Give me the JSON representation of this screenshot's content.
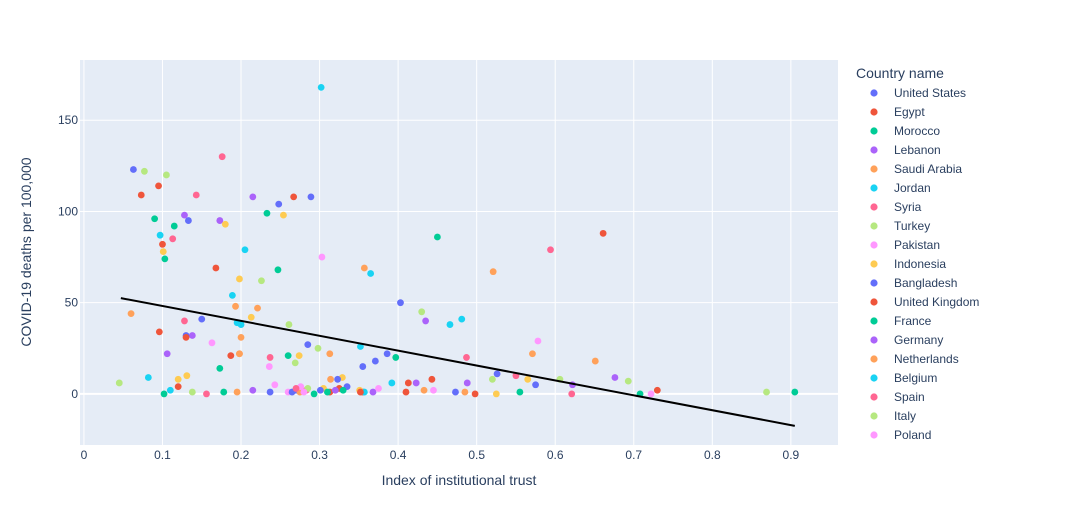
{
  "chart_data": {
    "type": "scatter",
    "xlabel": "Index of institutional trust",
    "ylabel": "COVID-19 deaths per 100,000",
    "xlim": [
      -0.005,
      0.96
    ],
    "ylim": [
      -28,
      183
    ],
    "xticks": [
      0,
      0.1,
      0.2,
      0.3,
      0.4,
      0.5,
      0.6,
      0.7,
      0.8,
      0.9
    ],
    "xtick_labels": [
      "0",
      "0.1",
      "0.2",
      "0.3",
      "0.4",
      "0.5",
      "0.6",
      "0.7",
      "0.8",
      "0.9"
    ],
    "yticks": [
      0,
      50,
      100,
      150
    ],
    "ytick_labels": [
      "0",
      "50",
      "100",
      "150"
    ],
    "grid": true,
    "plot_background": "#e5ecf6",
    "legend_title": "Country name",
    "legend_position": "right",
    "trendline": {
      "color": "#000000",
      "points": [
        [
          0.047,
          52.5
        ],
        [
          0.905,
          -17.5
        ]
      ]
    },
    "series": [
      {
        "name": "United States",
        "color": "#636efa",
        "points": [
          [
            0.063,
            123
          ],
          [
            0.133,
            95
          ],
          [
            0.15,
            41
          ],
          [
            0.248,
            104
          ],
          [
            0.289,
            108
          ],
          [
            0.285,
            27
          ],
          [
            0.237,
            1
          ],
          [
            0.27,
            2
          ],
          [
            0.386,
            22
          ],
          [
            0.403,
            50
          ],
          [
            0.526,
            11
          ],
          [
            0.575,
            5
          ],
          [
            0.473,
            1
          ]
        ]
      },
      {
        "name": "Egypt",
        "color": "#ef553b",
        "points": [
          [
            0.073,
            109
          ],
          [
            0.095,
            114
          ],
          [
            0.1,
            82
          ],
          [
            0.096,
            34
          ],
          [
            0.168,
            69
          ],
          [
            0.267,
            108
          ],
          [
            0.12,
            4
          ],
          [
            0.187,
            21
          ],
          [
            0.413,
            6
          ],
          [
            0.443,
            8
          ],
          [
            0.661,
            88
          ],
          [
            0.73,
            2
          ],
          [
            0.355,
            1
          ],
          [
            0.41,
            1
          ],
          [
            0.498,
            0
          ]
        ]
      },
      {
        "name": "Morocco",
        "color": "#00cc96",
        "points": [
          [
            0.09,
            96
          ],
          [
            0.103,
            74
          ],
          [
            0.115,
            92
          ],
          [
            0.233,
            99
          ],
          [
            0.247,
            68
          ],
          [
            0.26,
            21
          ],
          [
            0.173,
            14
          ],
          [
            0.45,
            86
          ],
          [
            0.397,
            20
          ],
          [
            0.102,
            0
          ],
          [
            0.178,
            1
          ],
          [
            0.293,
            0
          ],
          [
            0.555,
            1
          ],
          [
            0.708,
            0
          ],
          [
            0.905,
            1
          ]
        ]
      },
      {
        "name": "Lebanon",
        "color": "#ab63fa",
        "points": [
          [
            0.128,
            98
          ],
          [
            0.173,
            95
          ],
          [
            0.215,
            108
          ],
          [
            0.106,
            22
          ],
          [
            0.138,
            32
          ],
          [
            0.435,
            40
          ],
          [
            0.423,
            6
          ],
          [
            0.488,
            6
          ],
          [
            0.676,
            9
          ],
          [
            0.215,
            2
          ],
          [
            0.368,
            1
          ]
        ]
      },
      {
        "name": "Saudi Arabia",
        "color": "#ffa15a",
        "points": [
          [
            0.06,
            44
          ],
          [
            0.193,
            48
          ],
          [
            0.221,
            47
          ],
          [
            0.198,
            22
          ],
          [
            0.313,
            22
          ],
          [
            0.357,
            69
          ],
          [
            0.521,
            67
          ],
          [
            0.571,
            22
          ],
          [
            0.651,
            18
          ],
          [
            0.314,
            8
          ],
          [
            0.485,
            1
          ],
          [
            0.433,
            2
          ],
          [
            0.275,
            1
          ],
          [
            0.195,
            1
          ]
        ]
      },
      {
        "name": "Jordan",
        "color": "#19d3f3",
        "points": [
          [
            0.097,
            87
          ],
          [
            0.205,
            79
          ],
          [
            0.189,
            54
          ],
          [
            0.195,
            39
          ],
          [
            0.302,
            168
          ],
          [
            0.365,
            66
          ],
          [
            0.352,
            26
          ],
          [
            0.466,
            38
          ],
          [
            0.481,
            41
          ],
          [
            0.082,
            9
          ],
          [
            0.11,
            2
          ],
          [
            0.392,
            6
          ],
          [
            0.357,
            1
          ]
        ]
      },
      {
        "name": "Syria",
        "color": "#ff6692",
        "points": [
          [
            0.176,
            130
          ],
          [
            0.143,
            109
          ],
          [
            0.113,
            85
          ],
          [
            0.128,
            40
          ],
          [
            0.237,
            20
          ],
          [
            0.487,
            20
          ],
          [
            0.594,
            79
          ],
          [
            0.621,
            0
          ],
          [
            0.156,
            0
          ],
          [
            0.283,
            2
          ],
          [
            0.55,
            10
          ]
        ]
      },
      {
        "name": "Turkey",
        "color": "#b6e880",
        "points": [
          [
            0.077,
            122
          ],
          [
            0.105,
            120
          ],
          [
            0.226,
            62
          ],
          [
            0.261,
            38
          ],
          [
            0.269,
            17
          ],
          [
            0.43,
            45
          ],
          [
            0.045,
            6
          ],
          [
            0.138,
            1
          ],
          [
            0.298,
            25
          ],
          [
            0.52,
            8
          ],
          [
            0.606,
            8
          ],
          [
            0.693,
            7
          ],
          [
            0.869,
            1
          ]
        ]
      },
      {
        "name": "Pakistan",
        "color": "#ff97ff",
        "points": [
          [
            0.303,
            75
          ],
          [
            0.163,
            28
          ],
          [
            0.236,
            15
          ],
          [
            0.276,
            4
          ],
          [
            0.375,
            3
          ],
          [
            0.578,
            29
          ],
          [
            0.722,
            0
          ],
          [
            0.26,
            1
          ],
          [
            0.243,
            5
          ],
          [
            0.445,
            2
          ]
        ]
      },
      {
        "name": "Indonesia",
        "color": "#fecb52",
        "points": [
          [
            0.101,
            78
          ],
          [
            0.18,
            93
          ],
          [
            0.198,
            63
          ],
          [
            0.254,
            98
          ],
          [
            0.213,
            42
          ],
          [
            0.274,
            21
          ],
          [
            0.12,
            8
          ],
          [
            0.131,
            10
          ],
          [
            0.305,
            3
          ],
          [
            0.329,
            9
          ],
          [
            0.351,
            2
          ],
          [
            0.565,
            8
          ],
          [
            0.525,
            0
          ]
        ]
      },
      {
        "name": "Bangladesh",
        "color": "#636efa",
        "points": [
          [
            0.13,
            32
          ],
          [
            0.371,
            18
          ],
          [
            0.355,
            15
          ],
          [
            0.323,
            8
          ],
          [
            0.301,
            2
          ],
          [
            0.265,
            1
          ],
          [
            0.335,
            4
          ]
        ]
      },
      {
        "name": "United Kingdom",
        "color": "#ef553b",
        "points": [
          [
            0.13,
            31
          ],
          [
            0.313,
            1
          ],
          [
            0.325,
            3
          ],
          [
            0.352,
            1
          ]
        ]
      },
      {
        "name": "France",
        "color": "#00cc96",
        "points": [
          [
            0.31,
            1
          ],
          [
            0.33,
            2
          ]
        ]
      },
      {
        "name": "Germany",
        "color": "#ab63fa",
        "points": [
          [
            0.622,
            5
          ],
          [
            0.32,
            2
          ]
        ]
      },
      {
        "name": "Netherlands",
        "color": "#ffa15a",
        "points": [
          [
            0.198,
            22
          ],
          [
            0.2,
            31
          ]
        ]
      },
      {
        "name": "Belgium",
        "color": "#19d3f3",
        "points": [
          [
            0.2,
            38
          ]
        ]
      },
      {
        "name": "Spain",
        "color": "#ff6692",
        "points": [
          [
            0.27,
            3
          ]
        ]
      },
      {
        "name": "Italy",
        "color": "#b6e880",
        "points": [
          [
            0.285,
            3
          ]
        ]
      },
      {
        "name": "Poland",
        "color": "#ff97ff",
        "points": [
          [
            0.28,
            1
          ]
        ]
      }
    ]
  }
}
